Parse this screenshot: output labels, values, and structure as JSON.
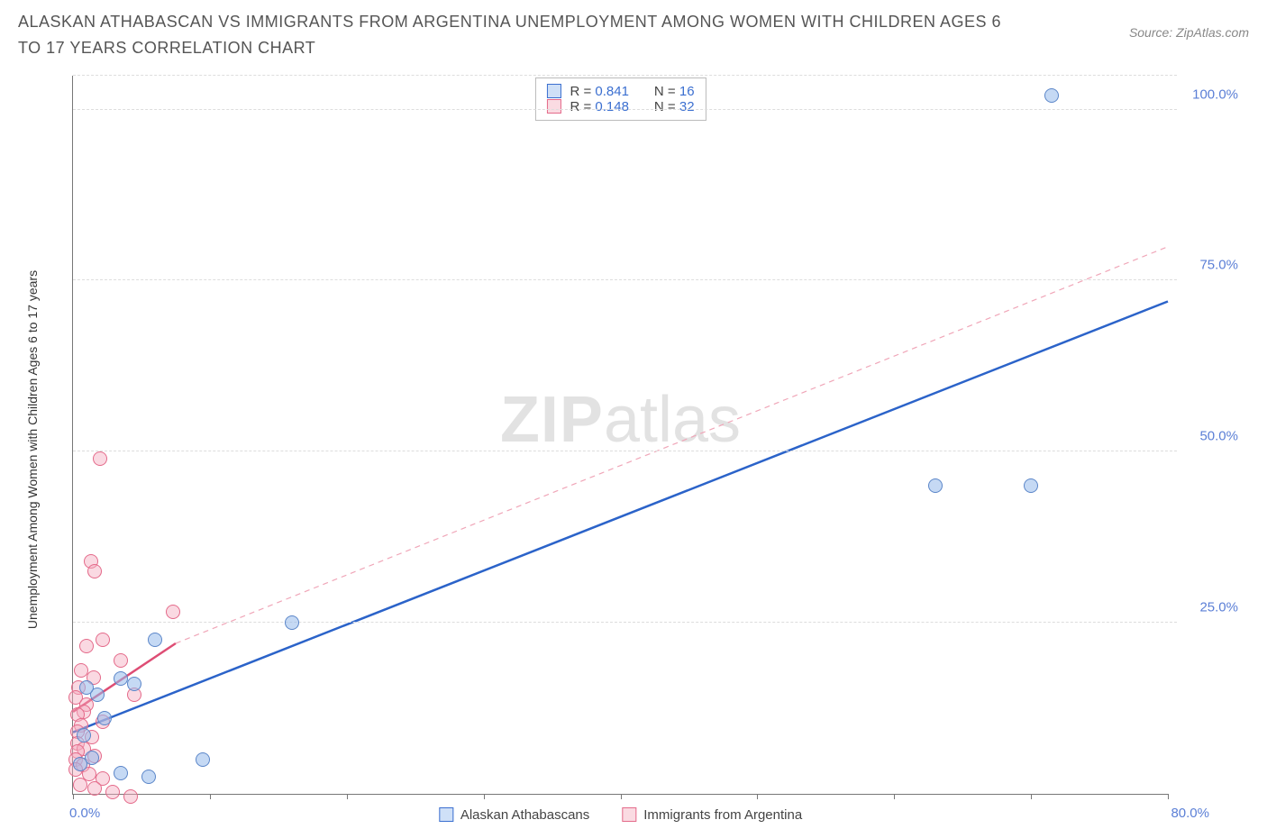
{
  "title": "ALASKAN ATHABASCAN VS IMMIGRANTS FROM ARGENTINA UNEMPLOYMENT AMONG WOMEN WITH CHILDREN AGES 6 TO 17 YEARS CORRELATION CHART",
  "source_label": "Source: ZipAtlas.com",
  "watermark": {
    "bold": "ZIP",
    "light": "atlas"
  },
  "y_axis_label": "Unemployment Among Women with Children Ages 6 to 17 years",
  "axes": {
    "xlim": [
      0,
      80
    ],
    "ylim": [
      0,
      105
    ],
    "x_tick_label_left": "0.0%",
    "x_tick_label_right": "80.0%",
    "x_minor_ticks": [
      0,
      10,
      20,
      30,
      40,
      50,
      60,
      70,
      80
    ],
    "y_gridlines": [
      25,
      50,
      75,
      100,
      105
    ],
    "y_tick_labels": [
      {
        "v": 25,
        "t": "25.0%"
      },
      {
        "v": 50,
        "t": "50.0%"
      },
      {
        "v": 75,
        "t": "75.0%"
      },
      {
        "v": 100,
        "t": "100.0%"
      }
    ]
  },
  "legend_stats": {
    "series1": {
      "swatch_fill": "#cfe0f7",
      "swatch_border": "#3b6fd0",
      "R": "0.841",
      "N": "16"
    },
    "series2": {
      "swatch_fill": "#fadbe2",
      "swatch_border": "#e46a8a",
      "R": "0.148",
      "N": "32"
    }
  },
  "bottom_legend": {
    "series1": {
      "label": "Alaskan Athabascans",
      "swatch_fill": "#cfe0f7",
      "swatch_border": "#3b6fd0"
    },
    "series2": {
      "label": "Immigrants from Argentina",
      "swatch_fill": "#fadbe2",
      "swatch_border": "#e46a8a"
    }
  },
  "series": {
    "blue": {
      "fill": "rgba(150,185,235,0.55)",
      "stroke": "#5b86c9",
      "r": 8,
      "points": [
        [
          71.5,
          102
        ],
        [
          63,
          45
        ],
        [
          70,
          45
        ],
        [
          16,
          25
        ],
        [
          6,
          22.5
        ],
        [
          4.5,
          16
        ],
        [
          3.5,
          16.8
        ],
        [
          2.3,
          11
        ],
        [
          1.8,
          14.5
        ],
        [
          1.0,
          15.5
        ],
        [
          0.8,
          8.5
        ],
        [
          3.5,
          3
        ],
        [
          5.5,
          2.5
        ],
        [
          9.5,
          5
        ],
        [
          1.4,
          5.2
        ],
        [
          0.5,
          4.3
        ]
      ],
      "trend": {
        "x1": 0,
        "y1": 9,
        "x2": 80,
        "y2": 72,
        "stroke": "#2b63c9",
        "width": 2.5,
        "dash": ""
      }
    },
    "pink": {
      "fill": "rgba(245,170,190,0.45)",
      "stroke": "#e46a8a",
      "r": 8,
      "points": [
        [
          2.0,
          49
        ],
        [
          1.3,
          34
        ],
        [
          1.6,
          32.5
        ],
        [
          7.3,
          26.5
        ],
        [
          2.2,
          22.5
        ],
        [
          1.0,
          21.5
        ],
        [
          3.5,
          19.5
        ],
        [
          0.6,
          18
        ],
        [
          1.5,
          17
        ],
        [
          0.4,
          15.5
        ],
        [
          4.5,
          14.5
        ],
        [
          0.2,
          14
        ],
        [
          1.0,
          13
        ],
        [
          0.8,
          12
        ],
        [
          0.3,
          11.5
        ],
        [
          2.2,
          10.5
        ],
        [
          0.6,
          10
        ],
        [
          0.3,
          9
        ],
        [
          1.4,
          8.2
        ],
        [
          0.3,
          7.3
        ],
        [
          0.8,
          6.5
        ],
        [
          0.3,
          6.2
        ],
        [
          1.6,
          5.5
        ],
        [
          0.2,
          5
        ],
        [
          0.7,
          4.1
        ],
        [
          0.2,
          3.5
        ],
        [
          1.2,
          2.8
        ],
        [
          2.2,
          2.2
        ],
        [
          0.5,
          1.3
        ],
        [
          1.6,
          0.8
        ],
        [
          2.9,
          0.2
        ],
        [
          4.2,
          -0.5
        ]
      ],
      "trend_solid": {
        "x1": 0,
        "y1": 12,
        "x2": 7.5,
        "y2": 22,
        "stroke": "#de4d74",
        "width": 2.5
      },
      "trend_dash": {
        "x1": 7.5,
        "y1": 22,
        "x2": 80,
        "y2": 80,
        "stroke": "#f0a6b8",
        "width": 1.2,
        "dash": "6 5"
      }
    }
  },
  "colors": {
    "title": "#555555",
    "axis_text": "#5b7fd6",
    "grid": "#dddddd"
  }
}
